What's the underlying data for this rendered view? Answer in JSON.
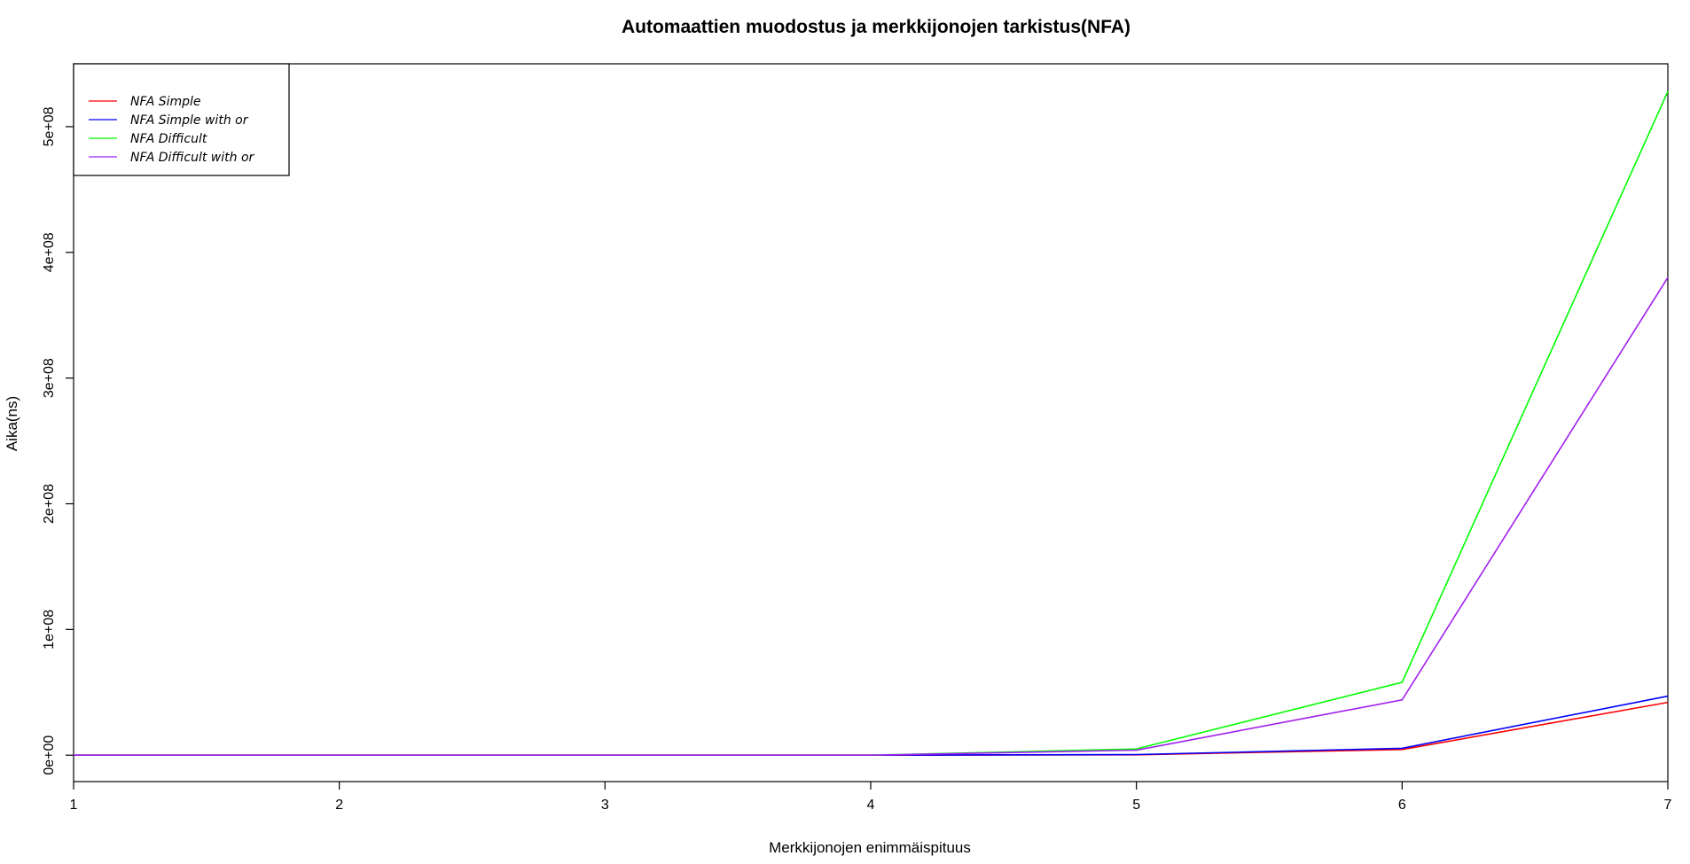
{
  "chart_data": {
    "type": "line",
    "title": "Automaattien muodostus ja merkkijonojen tarkistus(NFA)",
    "xlabel": "Merkkijonojen enimmäispituus",
    "ylabel": "Aika(ns)",
    "x": [
      1,
      2,
      3,
      4,
      5,
      6,
      7
    ],
    "xlim": [
      1,
      7
    ],
    "ylim": [
      -21000000,
      550000000
    ],
    "x_ticks": [
      1,
      2,
      3,
      4,
      5,
      6,
      7
    ],
    "x_tick_labels": [
      "1",
      "2",
      "3",
      "4",
      "5",
      "6",
      "7"
    ],
    "y_ticks": [
      0,
      100000000,
      200000000,
      300000000,
      400000000,
      500000000
    ],
    "y_tick_labels": [
      "0e+00",
      "1e+08",
      "2e+08",
      "3e+08",
      "4e+08",
      "5e+08"
    ],
    "grid": false,
    "legend_position": "top-left",
    "series": [
      {
        "name": "NFA Simple",
        "color": "#ff0000",
        "values": [
          0,
          0,
          0,
          0,
          300000,
          4500000,
          42000000
        ]
      },
      {
        "name": "NFA Simple with or",
        "color": "#0000ff",
        "values": [
          0,
          0,
          0,
          0,
          500000,
          5500000,
          47000000
        ]
      },
      {
        "name": "NFA Difficult",
        "color": "#00ff00",
        "values": [
          0,
          0,
          0,
          0,
          5000000,
          58000000,
          528000000
        ]
      },
      {
        "name": "NFA Difficult with or",
        "color": "#a020f0",
        "values": [
          0,
          0,
          0,
          0,
          4000000,
          44000000,
          380000000
        ]
      }
    ]
  }
}
